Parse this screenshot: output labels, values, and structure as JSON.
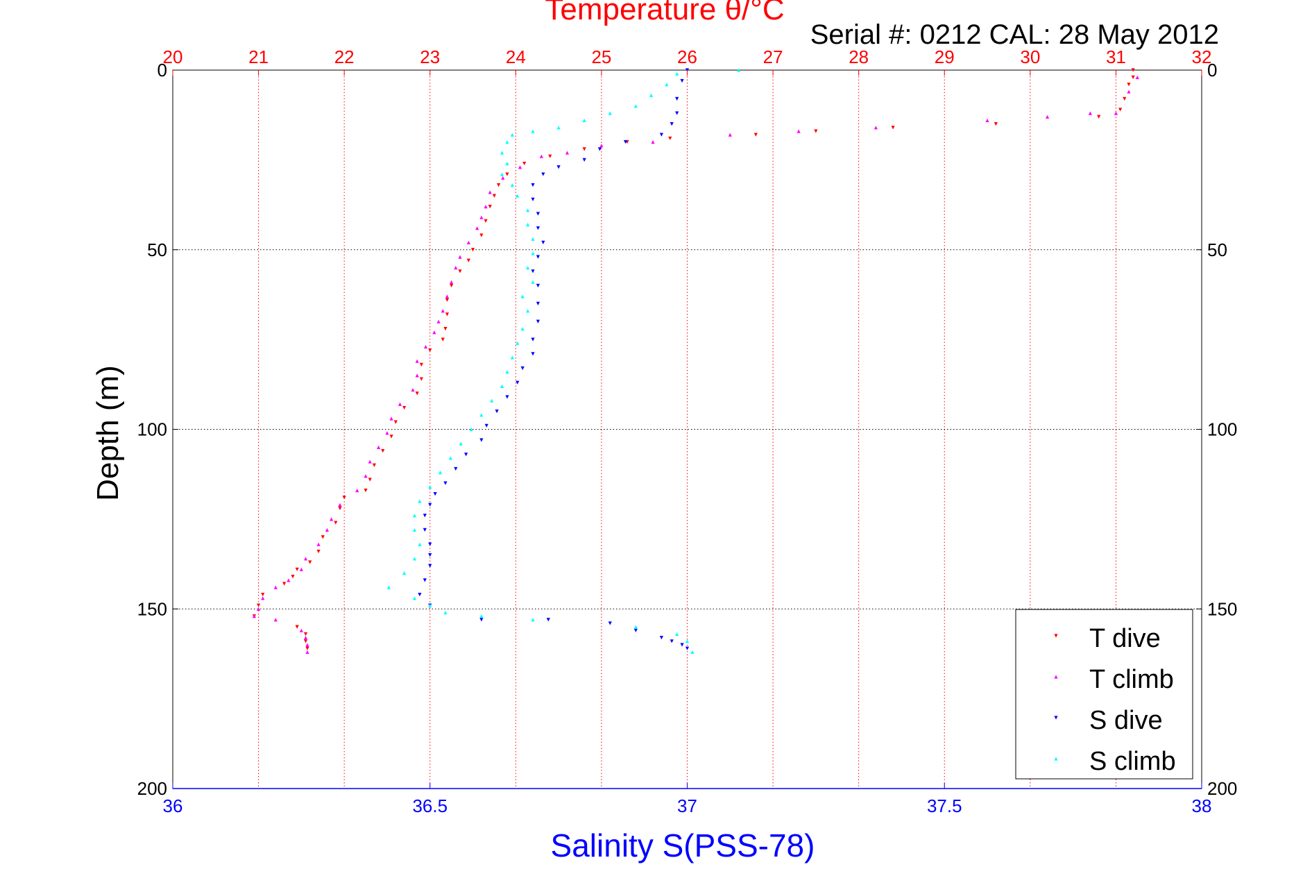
{
  "chart_data": {
    "type": "scatter",
    "title": "Temperature θ/°C",
    "subtitle": "Serial #: 0212  CAL: 28 May 2012",
    "ylabel": "Depth (m)",
    "xlabel_bottom": "Salinity S(PSS-78)",
    "xlabel_top": "Temperature θ/°C",
    "ylim": [
      0,
      200
    ],
    "y_reversed": true,
    "x_bottom_lim": [
      36,
      38
    ],
    "x_top_lim": [
      20,
      32
    ],
    "y_ticks": [
      0,
      50,
      100,
      150,
      200
    ],
    "x_bottom_ticks": [
      36,
      36.5,
      37,
      37.5,
      38
    ],
    "x_top_ticks": [
      20,
      21,
      22,
      23,
      24,
      25,
      26,
      27,
      28,
      29,
      30,
      31,
      32
    ],
    "grid": true,
    "legend_position": "bottom-right",
    "colors": {
      "temperature_axis": "#ff0000",
      "salinity_axis": "#0000ff",
      "t_dive": "#ff0000",
      "t_climb": "#ff00ff",
      "s_dive": "#0000ff",
      "s_climb": "#00ffff"
    },
    "series": [
      {
        "name": "T dive",
        "axis": "temperature",
        "marker": "triangle-down",
        "points": [
          [
            31.2,
            0
          ],
          [
            31.2,
            2
          ],
          [
            31.15,
            4
          ],
          [
            31.1,
            8
          ],
          [
            31.05,
            11
          ],
          [
            30.8,
            13
          ],
          [
            29.6,
            15
          ],
          [
            28.4,
            16
          ],
          [
            27.5,
            17
          ],
          [
            26.8,
            18
          ],
          [
            25.8,
            19
          ],
          [
            25.3,
            20
          ],
          [
            24.8,
            22
          ],
          [
            24.4,
            24
          ],
          [
            24.1,
            26
          ],
          [
            23.9,
            29
          ],
          [
            23.8,
            32
          ],
          [
            23.75,
            35
          ],
          [
            23.7,
            38
          ],
          [
            23.65,
            42
          ],
          [
            23.6,
            46
          ],
          [
            23.5,
            50
          ],
          [
            23.45,
            53
          ],
          [
            23.35,
            56
          ],
          [
            23.25,
            60
          ],
          [
            23.2,
            64
          ],
          [
            23.2,
            68
          ],
          [
            23.18,
            72
          ],
          [
            23.15,
            75
          ],
          [
            23.0,
            78
          ],
          [
            22.9,
            82
          ],
          [
            22.9,
            86
          ],
          [
            22.85,
            90
          ],
          [
            22.7,
            94
          ],
          [
            22.6,
            98
          ],
          [
            22.55,
            102
          ],
          [
            22.45,
            106
          ],
          [
            22.35,
            110
          ],
          [
            22.3,
            114
          ],
          [
            22.25,
            117
          ],
          [
            22.0,
            119
          ],
          [
            21.95,
            122
          ],
          [
            21.9,
            126
          ],
          [
            21.75,
            130
          ],
          [
            21.7,
            134
          ],
          [
            21.6,
            137
          ],
          [
            21.45,
            139
          ],
          [
            21.4,
            141
          ],
          [
            21.3,
            143
          ],
          [
            21.05,
            146
          ],
          [
            21.0,
            149
          ],
          [
            20.95,
            152
          ],
          [
            21.45,
            155
          ],
          [
            21.55,
            157
          ],
          [
            21.55,
            159
          ],
          [
            21.57,
            161
          ]
        ]
      },
      {
        "name": "T climb",
        "axis": "temperature",
        "marker": "triangle-up",
        "points": [
          [
            31.25,
            2
          ],
          [
            31.15,
            6
          ],
          [
            31.0,
            12
          ],
          [
            30.7,
            12
          ],
          [
            30.2,
            13
          ],
          [
            29.5,
            14
          ],
          [
            28.2,
            16
          ],
          [
            27.3,
            17
          ],
          [
            26.5,
            18
          ],
          [
            25.6,
            20
          ],
          [
            25.0,
            21
          ],
          [
            24.6,
            23
          ],
          [
            24.3,
            24
          ],
          [
            24.05,
            27
          ],
          [
            23.85,
            30
          ],
          [
            23.7,
            34
          ],
          [
            23.65,
            38
          ],
          [
            23.6,
            41
          ],
          [
            23.55,
            44
          ],
          [
            23.45,
            48
          ],
          [
            23.35,
            52
          ],
          [
            23.3,
            55
          ],
          [
            23.25,
            59
          ],
          [
            23.2,
            63
          ],
          [
            23.15,
            67
          ],
          [
            23.1,
            70
          ],
          [
            23.05,
            73
          ],
          [
            22.95,
            77
          ],
          [
            22.85,
            81
          ],
          [
            22.85,
            85
          ],
          [
            22.8,
            89
          ],
          [
            22.65,
            93
          ],
          [
            22.55,
            97
          ],
          [
            22.5,
            101
          ],
          [
            22.4,
            105
          ],
          [
            22.3,
            109
          ],
          [
            22.25,
            113
          ],
          [
            22.15,
            117
          ],
          [
            21.95,
            121
          ],
          [
            21.85,
            125
          ],
          [
            21.8,
            128
          ],
          [
            21.7,
            132
          ],
          [
            21.55,
            136
          ],
          [
            21.5,
            139
          ],
          [
            21.35,
            142
          ],
          [
            21.2,
            144
          ],
          [
            21.05,
            147
          ],
          [
            21.0,
            150
          ],
          [
            20.95,
            152
          ],
          [
            21.2,
            153
          ],
          [
            21.5,
            156
          ],
          [
            21.55,
            158
          ],
          [
            21.57,
            160
          ],
          [
            21.57,
            162
          ]
        ]
      },
      {
        "name": "S dive",
        "axis": "salinity",
        "marker": "triangle-down",
        "points": [
          [
            37.0,
            0
          ],
          [
            36.99,
            3
          ],
          [
            36.98,
            8
          ],
          [
            36.98,
            12
          ],
          [
            36.97,
            15
          ],
          [
            36.95,
            18
          ],
          [
            36.88,
            20
          ],
          [
            36.83,
            22
          ],
          [
            36.8,
            25
          ],
          [
            36.75,
            27
          ],
          [
            36.72,
            29
          ],
          [
            36.7,
            32
          ],
          [
            36.7,
            36
          ],
          [
            36.71,
            40
          ],
          [
            36.71,
            44
          ],
          [
            36.72,
            48
          ],
          [
            36.71,
            52
          ],
          [
            36.7,
            56
          ],
          [
            36.71,
            60
          ],
          [
            36.71,
            65
          ],
          [
            36.71,
            70
          ],
          [
            36.7,
            75
          ],
          [
            36.7,
            79
          ],
          [
            36.68,
            83
          ],
          [
            36.67,
            87
          ],
          [
            36.65,
            91
          ],
          [
            36.63,
            95
          ],
          [
            36.61,
            99
          ],
          [
            36.6,
            103
          ],
          [
            36.57,
            107
          ],
          [
            36.55,
            111
          ],
          [
            36.53,
            115
          ],
          [
            36.51,
            118
          ],
          [
            36.5,
            121
          ],
          [
            36.49,
            124
          ],
          [
            36.49,
            128
          ],
          [
            36.5,
            132
          ],
          [
            36.5,
            135
          ],
          [
            36.5,
            138
          ],
          [
            36.49,
            142
          ],
          [
            36.48,
            146
          ],
          [
            36.5,
            149
          ],
          [
            36.6,
            153
          ],
          [
            36.73,
            153
          ],
          [
            36.85,
            154
          ],
          [
            36.9,
            156
          ],
          [
            36.95,
            158
          ],
          [
            36.97,
            159
          ],
          [
            36.99,
            160
          ],
          [
            37.0,
            161
          ]
        ]
      },
      {
        "name": "S climb",
        "axis": "salinity",
        "marker": "triangle-up",
        "points": [
          [
            37.1,
            0
          ],
          [
            36.98,
            1
          ],
          [
            36.96,
            4
          ],
          [
            36.93,
            7
          ],
          [
            36.9,
            10
          ],
          [
            36.85,
            12
          ],
          [
            36.8,
            14
          ],
          [
            36.75,
            16
          ],
          [
            36.7,
            17
          ],
          [
            36.66,
            18
          ],
          [
            36.65,
            20
          ],
          [
            36.64,
            23
          ],
          [
            36.65,
            26
          ],
          [
            36.64,
            29
          ],
          [
            36.66,
            32
          ],
          [
            36.67,
            35
          ],
          [
            36.69,
            39
          ],
          [
            36.69,
            43
          ],
          [
            36.7,
            47
          ],
          [
            36.7,
            51
          ],
          [
            36.69,
            55
          ],
          [
            36.7,
            59
          ],
          [
            36.68,
            63
          ],
          [
            36.69,
            67
          ],
          [
            36.68,
            72
          ],
          [
            36.67,
            76
          ],
          [
            36.66,
            80
          ],
          [
            36.65,
            84
          ],
          [
            36.64,
            88
          ],
          [
            36.62,
            92
          ],
          [
            36.6,
            96
          ],
          [
            36.58,
            100
          ],
          [
            36.56,
            104
          ],
          [
            36.54,
            108
          ],
          [
            36.52,
            112
          ],
          [
            36.5,
            116
          ],
          [
            36.48,
            120
          ],
          [
            36.47,
            124
          ],
          [
            36.47,
            128
          ],
          [
            36.48,
            132
          ],
          [
            36.47,
            136
          ],
          [
            36.45,
            140
          ],
          [
            36.42,
            144
          ],
          [
            36.47,
            147
          ],
          [
            36.5,
            149
          ],
          [
            36.53,
            151
          ],
          [
            36.6,
            152
          ],
          [
            36.7,
            153
          ],
          [
            36.9,
            155
          ],
          [
            36.98,
            157
          ],
          [
            37.0,
            159
          ],
          [
            37.01,
            162
          ]
        ]
      }
    ],
    "legend": [
      "T dive",
      "T climb",
      "S dive",
      "S climb"
    ]
  }
}
